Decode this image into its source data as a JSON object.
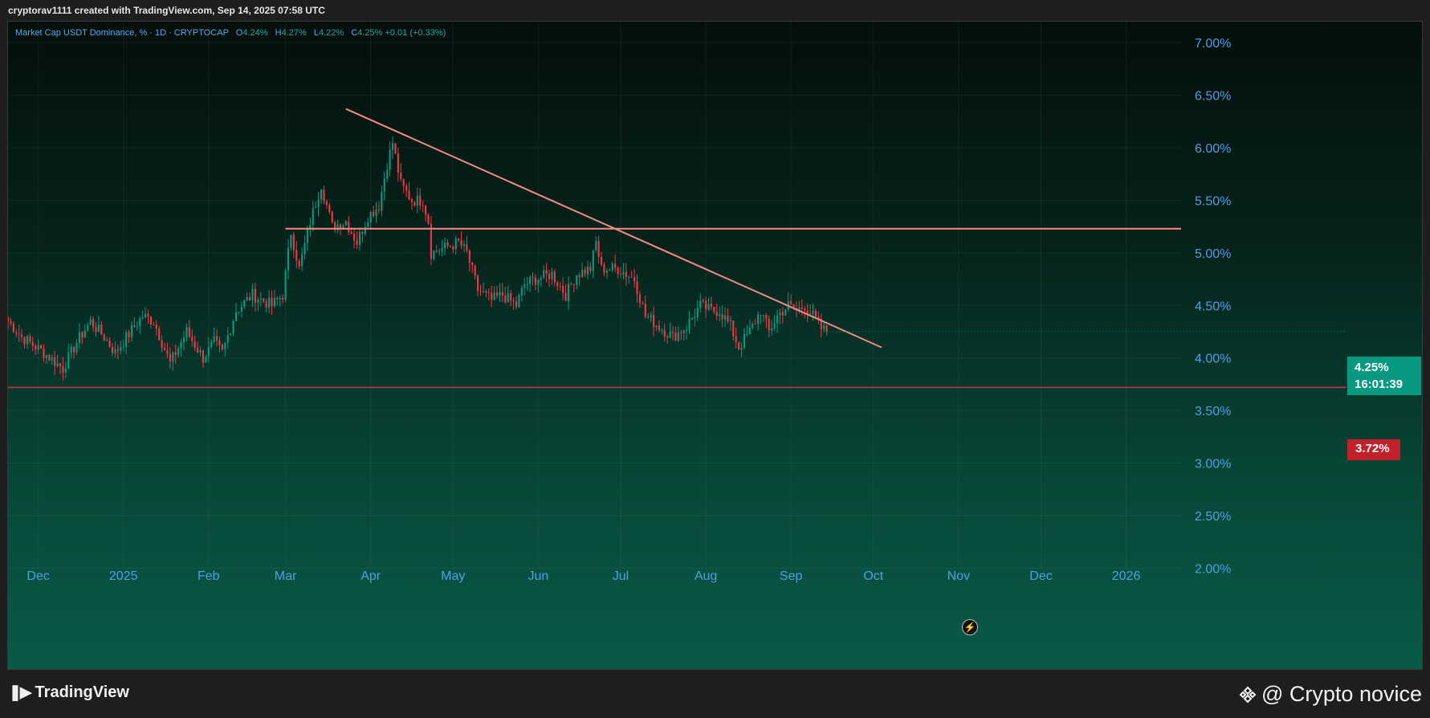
{
  "header": {
    "credit": "cryptorav1111 created with TradingView.com, Sep 14, 2025 07:58 UTC"
  },
  "legend": {
    "symbol": "Market Cap USDT Dominance, % · 1D · CRYPTOCAP",
    "open_label": "O",
    "open": "4.24%",
    "high_label": "H",
    "high": "4.27%",
    "low_label": "L",
    "low": "4.22%",
    "close_label": "C",
    "close": "4.25%",
    "change": "+0.01 (+0.33%)"
  },
  "price_tags": {
    "current": "4.25%",
    "countdown": "16:01:39",
    "support": "3.72%"
  },
  "footer": {
    "logo": "TradingView",
    "watermark": "@ Crypto novice"
  },
  "colors": {
    "up": "#089981",
    "down": "#f23645",
    "trendline": "#f28b82",
    "support": "#d9323a",
    "axis_text": "#4f9ee8"
  },
  "chart_data": {
    "type": "candlestick",
    "title": "Market Cap USDT Dominance, %",
    "y_axis": {
      "side": "right",
      "min": 1.85,
      "max": 7.2,
      "tick_labels": [
        "7.00%",
        "6.50%",
        "6.00%",
        "5.50%",
        "5.00%",
        "4.50%",
        "4.00%",
        "3.50%",
        "3.00%",
        "2.50%",
        "2.00%"
      ],
      "tick_values": [
        7.0,
        6.5,
        6.0,
        5.5,
        5.0,
        4.5,
        4.0,
        3.5,
        3.0,
        2.5,
        2.0
      ]
    },
    "x_axis": {
      "start": "2024-11-20",
      "end": "2026-01-21",
      "ticks": [
        {
          "date": "2024-12-01",
          "label": "Dec"
        },
        {
          "date": "2025-01-01",
          "label": "2025"
        },
        {
          "date": "2025-02-01",
          "label": "Feb"
        },
        {
          "date": "2025-03-01",
          "label": "Mar"
        },
        {
          "date": "2025-04-01",
          "label": "Apr"
        },
        {
          "date": "2025-05-01",
          "label": "May"
        },
        {
          "date": "2025-06-01",
          "label": "Jun"
        },
        {
          "date": "2025-07-01",
          "label": "Jul"
        },
        {
          "date": "2025-08-01",
          "label": "Aug"
        },
        {
          "date": "2025-09-01",
          "label": "Sep"
        },
        {
          "date": "2025-10-01",
          "label": "Oct"
        },
        {
          "date": "2025-11-01",
          "label": "Nov"
        },
        {
          "date": "2025-12-01",
          "label": "Dec"
        },
        {
          "date": "2026-01-01",
          "label": "2026"
        }
      ]
    },
    "close_anchors": [
      [
        "2024-11-20",
        4.35
      ],
      [
        "2024-11-25",
        4.2
      ],
      [
        "2024-12-03",
        4.05
      ],
      [
        "2024-12-10",
        3.9
      ],
      [
        "2024-12-15",
        4.15
      ],
      [
        "2024-12-20",
        4.35
      ],
      [
        "2024-12-25",
        4.2
      ],
      [
        "2024-12-29",
        4.05
      ],
      [
        "2025-01-05",
        4.3
      ],
      [
        "2025-01-08",
        4.4
      ],
      [
        "2025-01-12",
        4.35
      ],
      [
        "2025-01-18",
        3.95
      ],
      [
        "2025-01-24",
        4.25
      ],
      [
        "2025-01-30",
        4.0
      ],
      [
        "2025-02-03",
        4.15
      ],
      [
        "2025-02-06",
        4.05
      ],
      [
        "2025-02-11",
        4.45
      ],
      [
        "2025-02-17",
        4.6
      ],
      [
        "2025-02-24",
        4.5
      ],
      [
        "2025-02-28",
        4.6
      ],
      [
        "2025-03-03",
        5.2
      ],
      [
        "2025-03-06",
        4.85
      ],
      [
        "2025-03-10",
        5.3
      ],
      [
        "2025-03-14",
        5.65
      ],
      [
        "2025-03-18",
        5.25
      ],
      [
        "2025-03-23",
        5.3
      ],
      [
        "2025-03-27",
        5.1
      ],
      [
        "2025-03-31",
        5.35
      ],
      [
        "2025-04-04",
        5.45
      ],
      [
        "2025-04-07",
        5.85
      ],
      [
        "2025-04-09",
        6.05
      ],
      [
        "2025-04-12",
        5.65
      ],
      [
        "2025-04-16",
        5.5
      ],
      [
        "2025-04-20",
        5.5
      ],
      [
        "2025-04-22",
        5.3
      ],
      [
        "2025-04-23",
        5.0
      ],
      [
        "2025-04-28",
        5.05
      ],
      [
        "2025-05-03",
        5.1
      ],
      [
        "2025-05-06",
        5.0
      ],
      [
        "2025-05-10",
        4.65
      ],
      [
        "2025-05-15",
        4.55
      ],
      [
        "2025-05-19",
        4.6
      ],
      [
        "2025-05-24",
        4.5
      ],
      [
        "2025-05-27",
        4.7
      ],
      [
        "2025-05-31",
        4.75
      ],
      [
        "2025-06-06",
        4.8
      ],
      [
        "2025-06-11",
        4.6
      ],
      [
        "2025-06-15",
        4.8
      ],
      [
        "2025-06-20",
        4.85
      ],
      [
        "2025-06-22",
        5.1
      ],
      [
        "2025-06-24",
        4.85
      ],
      [
        "2025-06-30",
        4.85
      ],
      [
        "2025-07-06",
        4.75
      ],
      [
        "2025-07-10",
        4.4
      ],
      [
        "2025-07-15",
        4.3
      ],
      [
        "2025-07-20",
        4.2
      ],
      [
        "2025-07-25",
        4.3
      ],
      [
        "2025-07-30",
        4.5
      ],
      [
        "2025-08-03",
        4.45
      ],
      [
        "2025-08-06",
        4.45
      ],
      [
        "2025-08-10",
        4.3
      ],
      [
        "2025-08-13",
        4.1
      ],
      [
        "2025-08-17",
        4.25
      ],
      [
        "2025-08-21",
        4.45
      ],
      [
        "2025-08-24",
        4.25
      ],
      [
        "2025-08-27",
        4.4
      ],
      [
        "2025-08-31",
        4.5
      ],
      [
        "2025-09-03",
        4.45
      ],
      [
        "2025-09-06",
        4.5
      ],
      [
        "2025-09-09",
        4.4
      ],
      [
        "2025-09-12",
        4.28
      ],
      [
        "2025-09-14",
        4.25
      ]
    ],
    "annotations": [
      {
        "type": "trendline",
        "from": {
          "date": "2025-03-23",
          "value": 6.37
        },
        "to": {
          "date": "2025-10-04",
          "value": 4.1
        }
      },
      {
        "type": "horizontal_ray",
        "from": {
          "date": "2025-03-01",
          "value": 5.23
        },
        "to": {
          "date": "2026-01-21",
          "value": 5.23
        }
      },
      {
        "type": "horizontal_line",
        "value": 3.72
      }
    ],
    "current_price": 4.25,
    "grid": true
  }
}
